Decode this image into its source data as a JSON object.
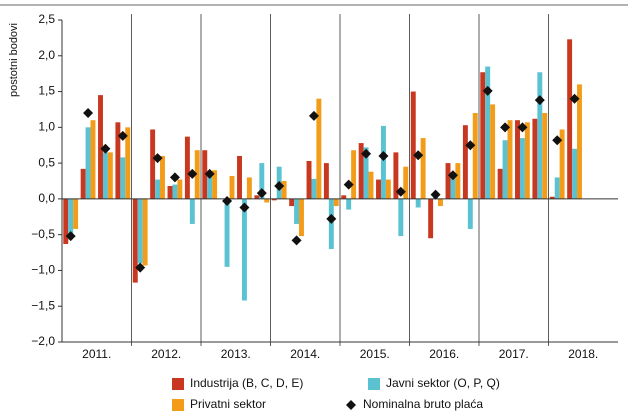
{
  "chart_data": {
    "type": "bar",
    "y_label": "postotni bodovi",
    "x_groups": [
      "2011.",
      "2012.",
      "2013.",
      "2014.",
      "2015.",
      "2016.",
      "2017.",
      "2018."
    ],
    "categories": [
      null,
      null,
      null,
      null,
      null,
      null,
      null,
      null,
      null,
      null,
      null,
      null,
      null,
      null,
      null,
      null,
      null,
      null,
      null,
      null,
      null,
      null,
      null,
      null,
      null,
      null,
      null,
      null,
      null,
      null
    ],
    "series": [
      {
        "name": "Industrija (B, C, D, E)",
        "color": "#c8371f",
        "mark": "bar",
        "values": [
          -0.63,
          0.42,
          1.45,
          1.07,
          -1.17,
          0.97,
          0.18,
          0.87,
          0.68,
          0.0,
          0.6,
          0.05,
          -0.02,
          -0.1,
          0.53,
          0.5,
          0.05,
          0.78,
          0.27,
          0.65,
          1.5,
          -0.55,
          0.5,
          1.03,
          1.77,
          0.42,
          1.1,
          1.12,
          0.03,
          2.23
        ]
      },
      {
        "name": "Javni sektor (O, P, Q)",
        "color": "#5bc2d1",
        "mark": "bar",
        "values": [
          -0.5,
          1.0,
          0.65,
          0.58,
          -0.9,
          0.27,
          0.2,
          -0.35,
          0.37,
          -0.95,
          -1.42,
          0.5,
          0.45,
          -0.35,
          0.28,
          -0.7,
          -0.15,
          0.72,
          1.02,
          -0.52,
          -0.12,
          0.1,
          0.35,
          -0.42,
          1.85,
          0.82,
          0.85,
          1.77,
          0.3,
          0.7
        ]
      },
      {
        "name": "Privatni sektor",
        "color": "#f39c19",
        "mark": "bar",
        "values": [
          -0.42,
          1.1,
          0.65,
          1.0,
          -0.93,
          0.6,
          0.27,
          0.68,
          0.4,
          0.32,
          0.3,
          -0.05,
          0.25,
          -0.52,
          1.4,
          -0.1,
          0.68,
          0.38,
          0.27,
          0.45,
          0.85,
          -0.1,
          0.5,
          1.2,
          1.32,
          1.1,
          1.07,
          1.2,
          0.97,
          1.6
        ]
      },
      {
        "name": "Nominalna bruto plaća",
        "color": "#111111",
        "mark": "diamond",
        "values": [
          -0.52,
          1.2,
          0.7,
          0.88,
          -0.96,
          0.57,
          0.3,
          0.35,
          0.35,
          -0.03,
          -0.12,
          0.08,
          0.18,
          -0.58,
          1.16,
          -0.28,
          0.2,
          0.63,
          0.6,
          0.1,
          0.61,
          0.06,
          0.33,
          0.75,
          1.51,
          1.0,
          1.0,
          1.38,
          0.82,
          1.4
        ]
      }
    ],
    "ylim": [
      -2.0,
      2.5
    ],
    "yticks": [
      {
        "value": -2.0,
        "label": "−2,0"
      },
      {
        "value": -1.5,
        "label": "−1,5"
      },
      {
        "value": -1.0,
        "label": "−1,0"
      },
      {
        "value": -0.5,
        "label": "−0,5"
      },
      {
        "value": 0.0,
        "label": "0,0"
      },
      {
        "value": 0.5,
        "label": "0,5"
      },
      {
        "value": 1.0,
        "label": "1,0"
      },
      {
        "value": 1.5,
        "label": "1,5"
      },
      {
        "value": 2.0,
        "label": "2,0"
      },
      {
        "value": 2.5,
        "label": "2,5"
      }
    ],
    "grid": false
  }
}
